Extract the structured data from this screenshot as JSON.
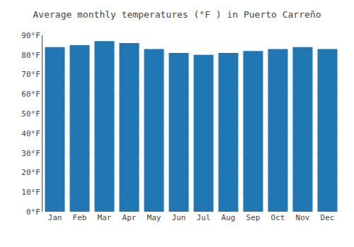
{
  "chart_data": {
    "type": "bar",
    "title": "Average monthly temperatures (°F ) in Puerto Carreño",
    "categories": [
      "Jan",
      "Feb",
      "Mar",
      "Apr",
      "May",
      "Jun",
      "Jul",
      "Aug",
      "Sep",
      "Oct",
      "Nov",
      "Dec"
    ],
    "values": [
      84,
      85,
      87,
      86,
      83,
      81,
      80,
      81,
      82,
      83,
      84,
      83
    ],
    "ylim": [
      0,
      90
    ],
    "yticks": [
      {
        "value": 0,
        "label": "0°F"
      },
      {
        "value": 10,
        "label": "10°F"
      },
      {
        "value": 20,
        "label": "20°F"
      },
      {
        "value": 30,
        "label": "30°F"
      },
      {
        "value": 40,
        "label": "40°F"
      },
      {
        "value": 50,
        "label": "50°F"
      },
      {
        "value": 60,
        "label": "60°F"
      },
      {
        "value": 70,
        "label": "70°F"
      },
      {
        "value": 80,
        "label": "80°F"
      },
      {
        "value": 90,
        "label": "90°F"
      }
    ],
    "grid": true
  }
}
